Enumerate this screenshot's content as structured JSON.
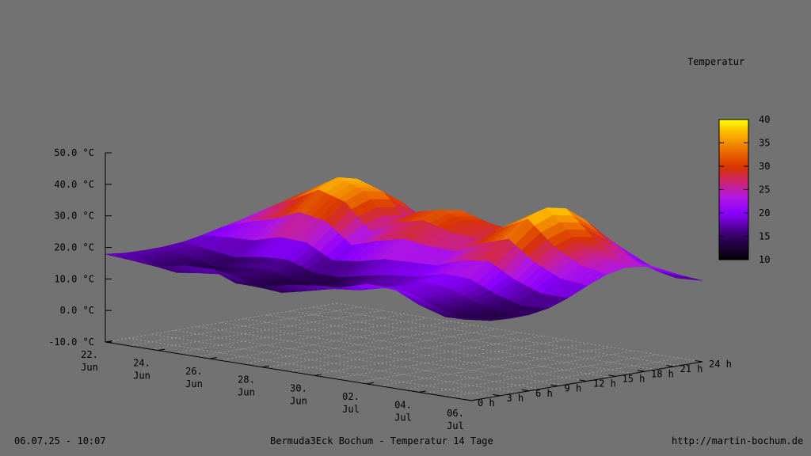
{
  "footer": {
    "timestamp": "06.07.25 - 10:07",
    "title": "Bermuda3Eck Bochum - Temperatur 14 Tage",
    "url": "http://martin-bochum.de"
  },
  "chart_data": {
    "type": "surface3d",
    "colorbar_title": "Temperatur",
    "colorbar": {
      "min": 10,
      "max": 40,
      "ticks": [
        "10",
        "15",
        "20",
        "25",
        "30",
        "35",
        "40"
      ]
    },
    "zlim": [
      -10,
      50
    ],
    "z_ticks": [
      "-10.0 °C",
      "0.0 °C",
      "10.0 °C",
      "20.0 °C",
      "30.0 °C",
      "40.0 °C",
      "50.0 °C"
    ],
    "x_ticks": [
      "22.\nJun",
      "24.\nJun",
      "26.\nJun",
      "28.\nJun",
      "30.\nJun",
      "02.\nJul",
      "04.\nJul",
      "06.\nJul"
    ],
    "y_ticks": [
      "0 h",
      "3 h",
      "6 h",
      "9 h",
      "12 h",
      "15 h",
      "18 h",
      "21 h",
      "24 h"
    ],
    "days": [
      "22.06",
      "23.06",
      "24.06",
      "25.06",
      "26.06",
      "27.06",
      "28.06",
      "29.06",
      "30.06",
      "01.07",
      "02.07",
      "03.07",
      "04.07",
      "05.07",
      "06.07"
    ],
    "day_min": [
      17,
      15,
      13,
      14,
      15,
      13,
      12,
      14,
      16,
      17,
      19,
      18,
      15,
      13,
      14
    ],
    "day_max": [
      22,
      28,
      33,
      38,
      35,
      26,
      31,
      33,
      30,
      29,
      34,
      39,
      31,
      26,
      24
    ]
  }
}
